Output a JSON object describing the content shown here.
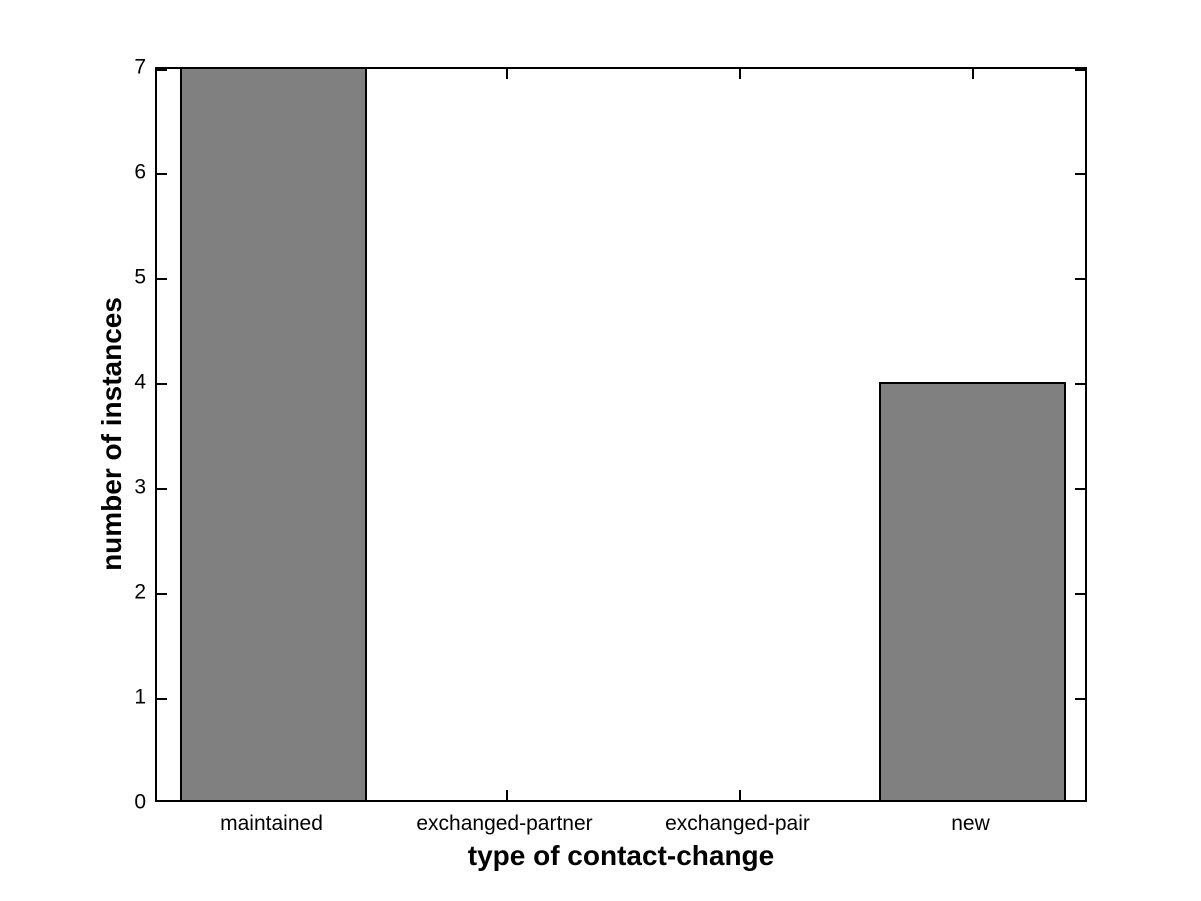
{
  "chart_data": {
    "type": "bar",
    "categories": [
      "maintained",
      "exchanged-partner",
      "exchanged-pair",
      "new"
    ],
    "values": [
      7,
      0,
      0,
      4
    ],
    "title": "",
    "xlabel": "type of contact-change",
    "ylabel": "number of instances",
    "ylim": [
      0,
      7
    ],
    "yticks": [
      0,
      1,
      2,
      3,
      4,
      5,
      6,
      7
    ],
    "bar_color": "#808080",
    "bar_edge_color": "#000000",
    "axis_color": "#000000",
    "background": "#ffffff",
    "grid": false,
    "legend_position": "none",
    "bar_width_fraction": 0.8
  }
}
